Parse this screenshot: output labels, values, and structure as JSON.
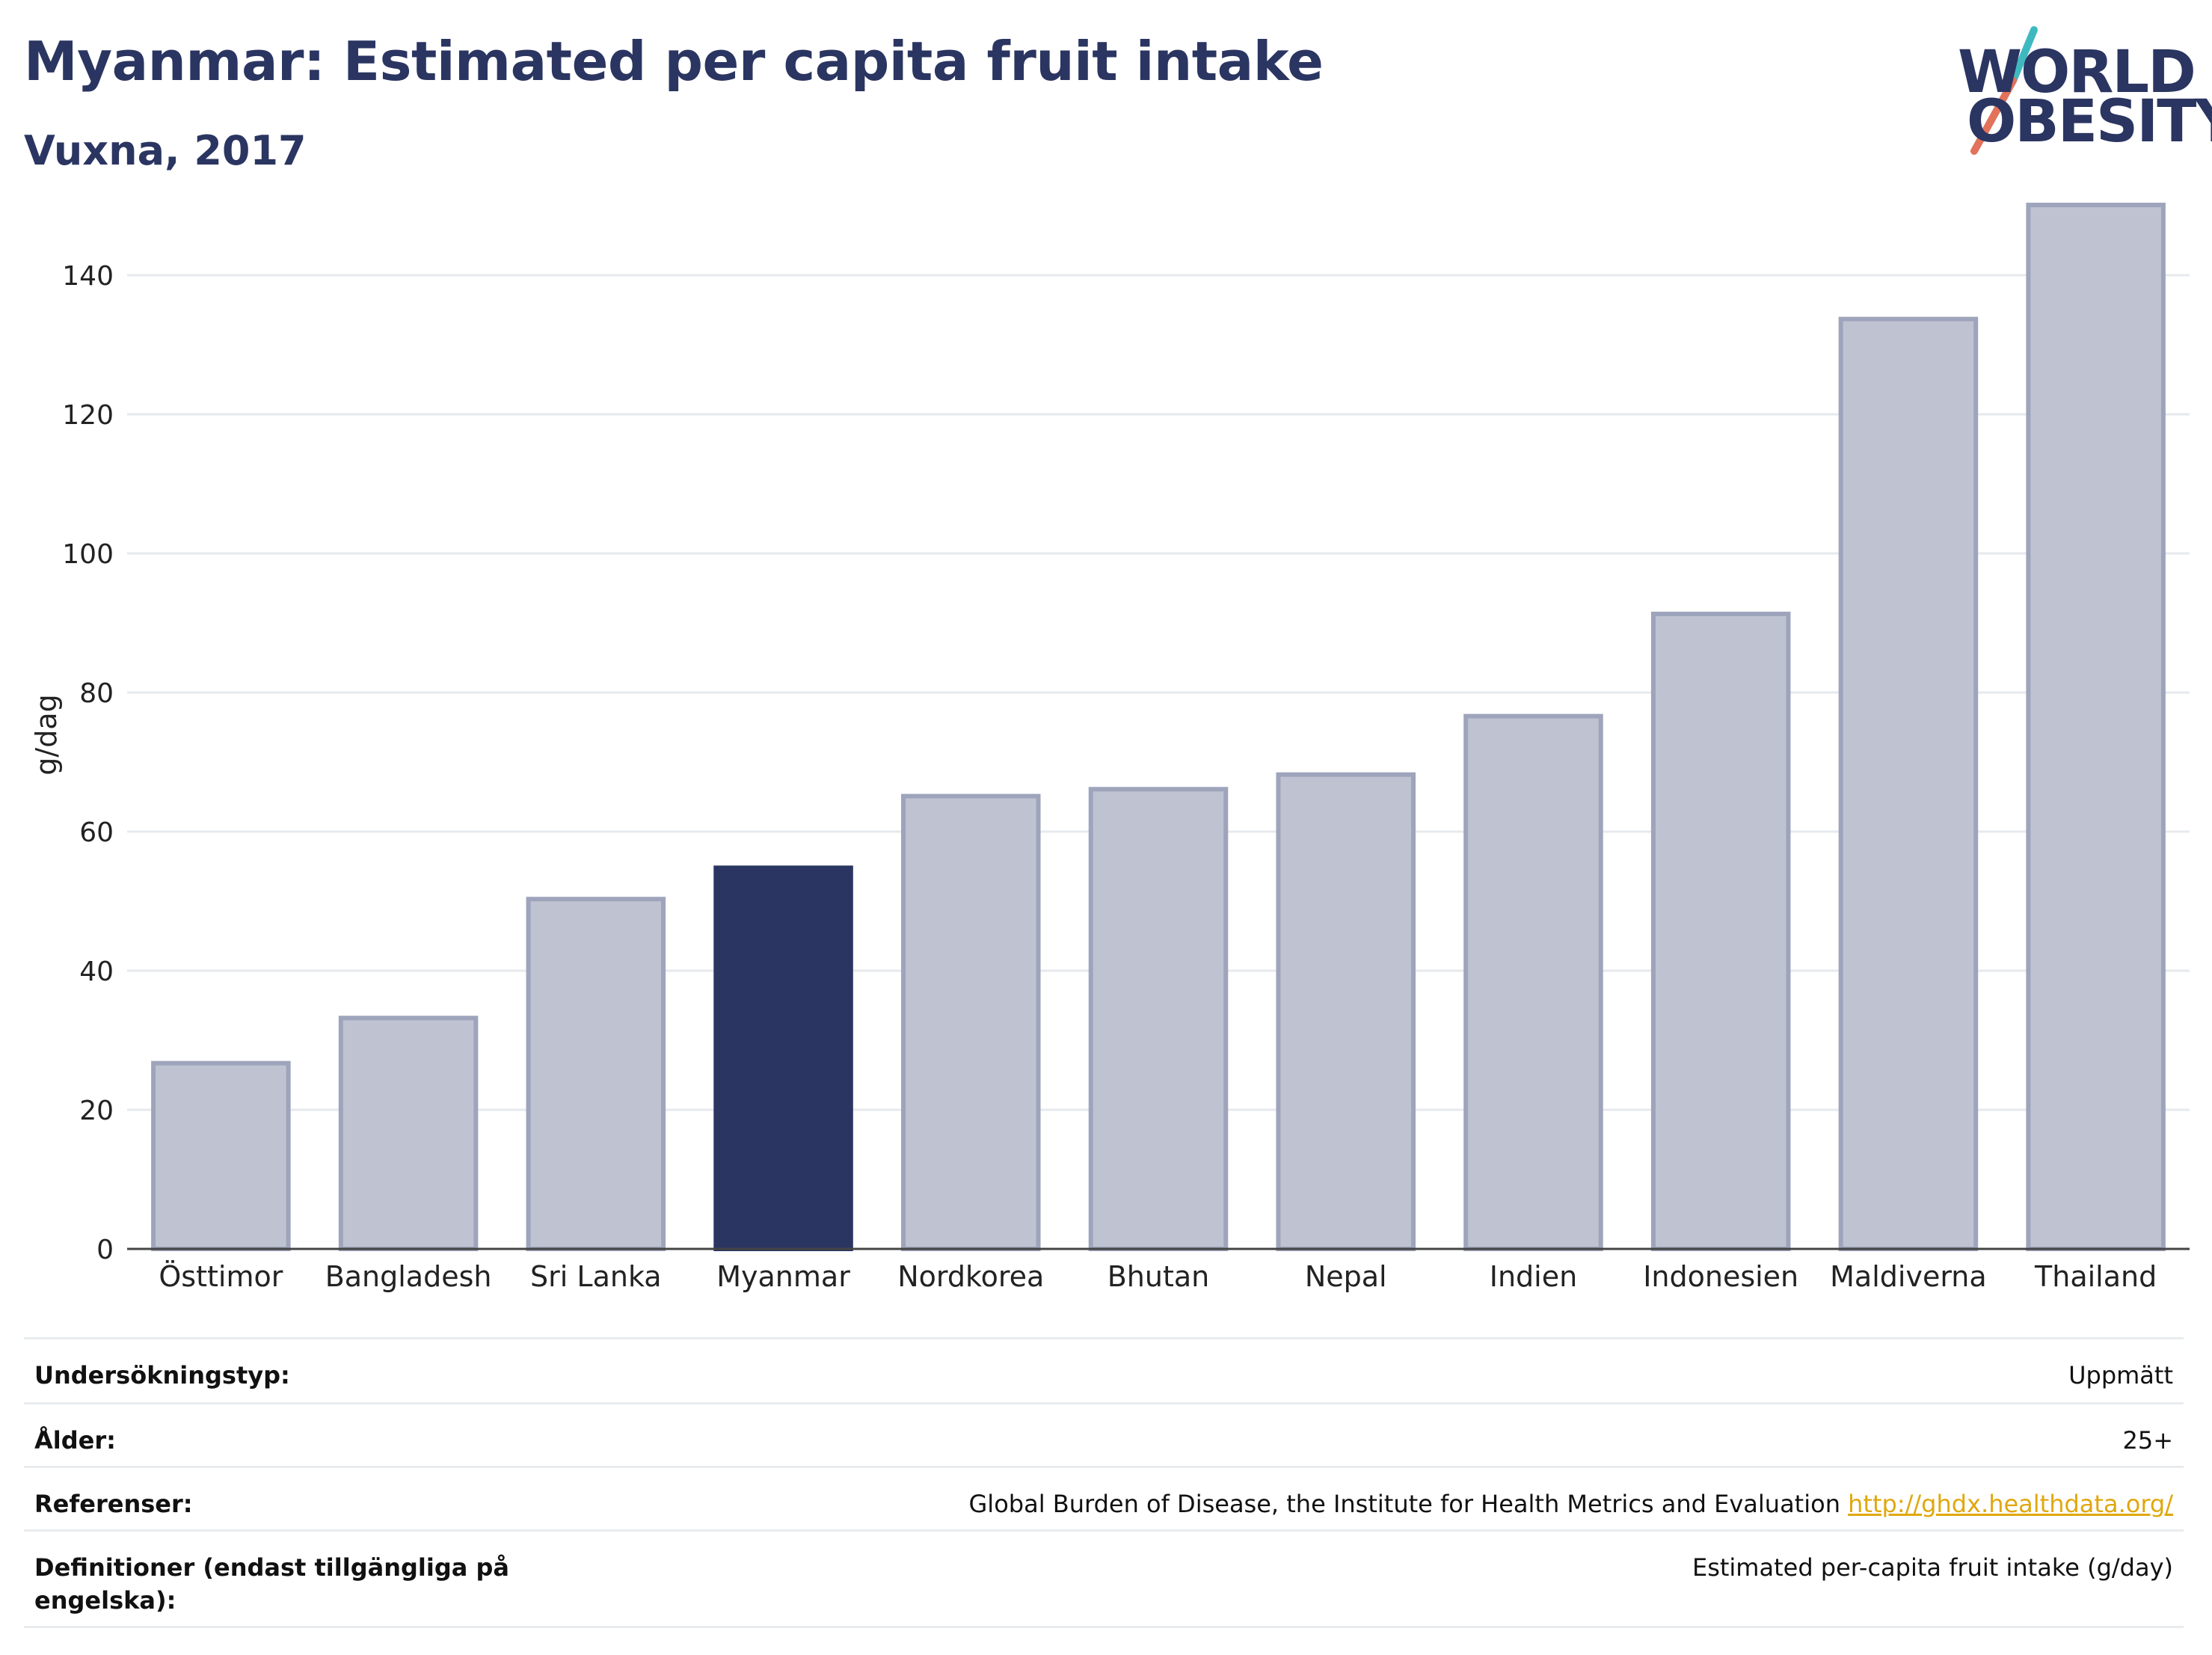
{
  "header": {
    "title": "Myanmar: Estimated per capita fruit intake",
    "subtitle": "Vuxna, 2017"
  },
  "logo": {
    "line1": "WORLD",
    "line2": "OBESITY",
    "colors": {
      "navy": "#2b3561",
      "teal": "#3fb9c0",
      "coral": "#e2725b"
    }
  },
  "chart_data": {
    "type": "bar",
    "title": "Myanmar: Estimated per capita fruit intake",
    "subtitle": "Vuxna, 2017",
    "ylabel": "g/dag",
    "xlabel": "",
    "ylim": [
      0,
      150
    ],
    "yticks": [
      0,
      20,
      40,
      60,
      80,
      100,
      120,
      140
    ],
    "grid": true,
    "legend": "none",
    "highlight": "Myanmar",
    "colors": {
      "bar": "#bfc3d1",
      "bar_edge": "#9ea4bb",
      "highlight": "#2b3561"
    },
    "categories": [
      "Östtimor",
      "Bangladesh",
      "Sri Lanka",
      "Myanmar",
      "Nordkorea",
      "Bhutan",
      "Nepal",
      "Indien",
      "Indonesien",
      "Maldiverna",
      "Thailand"
    ],
    "values": [
      26.7,
      33.2,
      50.3,
      54.8,
      65.1,
      66.1,
      68.2,
      76.6,
      91.3,
      133.7,
      150.1
    ]
  },
  "info_table": {
    "rows": [
      {
        "label": "Undersökningstyp:",
        "value": "Uppmätt"
      },
      {
        "label": "Ålder:",
        "value": "25+"
      },
      {
        "label": "Referenser:",
        "value": "Global Burden of Disease, the Institute for Health Metrics and Evaluation",
        "link": "http://ghdx.healthdata.org/"
      },
      {
        "label": "Definitioner (endast tillgängliga på engelska):",
        "value": "Estimated per-capita fruit intake (g/day)"
      }
    ]
  }
}
